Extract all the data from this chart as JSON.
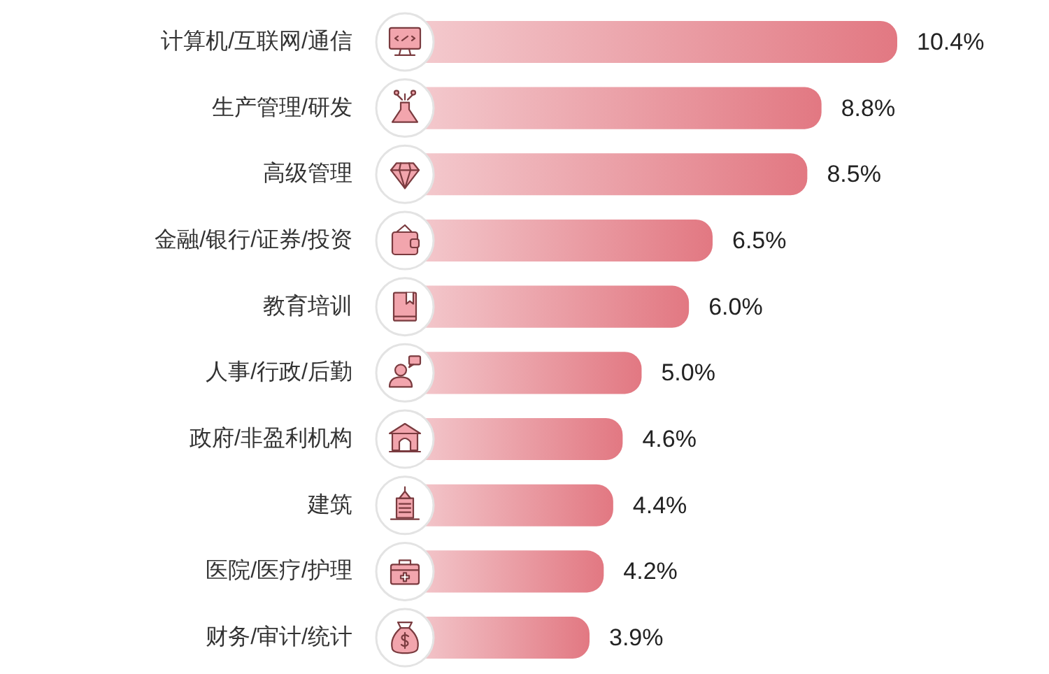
{
  "chart_data": {
    "type": "bar",
    "orientation": "horizontal",
    "categories": [
      "计算机/互联网/通信",
      "生产管理/研发",
      "高级管理",
      "金融/银行/证券/投资",
      "教育培训",
      "人事/行政/后勤",
      "政府/非盈利机构",
      "建筑",
      "医院/医疗/护理",
      "财务/审计/统计"
    ],
    "values": [
      10.4,
      8.8,
      8.5,
      6.5,
      6.0,
      5.0,
      4.6,
      4.4,
      4.2,
      3.9
    ],
    "value_labels": [
      "10.4%",
      "8.8%",
      "8.5%",
      "6.5%",
      "6.0%",
      "5.0%",
      "4.6%",
      "4.4%",
      "4.2%",
      "3.9%"
    ],
    "color": "#e27882"
  }
}
